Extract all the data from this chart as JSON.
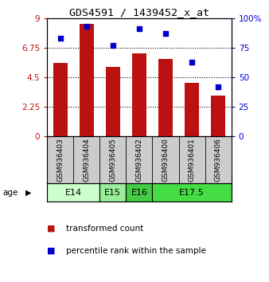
{
  "title": "GDS4591 / 1439452_x_at",
  "samples": [
    "GSM936403",
    "GSM936404",
    "GSM936405",
    "GSM936402",
    "GSM936400",
    "GSM936401",
    "GSM936406"
  ],
  "bar_values": [
    5.6,
    8.6,
    5.3,
    6.3,
    5.9,
    4.1,
    3.1
  ],
  "scatter_values": [
    83,
    93,
    77,
    91,
    87,
    63,
    42
  ],
  "bar_color": "#bb1111",
  "scatter_color": "#0000cc",
  "ylim_left": [
    0,
    9
  ],
  "ylim_right": [
    0,
    100
  ],
  "yticks_left": [
    0,
    2.25,
    4.5,
    6.75,
    9
  ],
  "ytick_labels_left": [
    "0",
    "2.25",
    "4.5",
    "6.75",
    "9"
  ],
  "yticks_right": [
    0,
    25,
    50,
    75,
    100
  ],
  "ytick_labels_right": [
    "0",
    "25",
    "50",
    "75",
    "100%"
  ],
  "hgrid_values": [
    2.25,
    4.5,
    6.75
  ],
  "age_groups": [
    {
      "label": "E14",
      "span": [
        0,
        1
      ],
      "color": "#ccffcc"
    },
    {
      "label": "E15",
      "span": [
        2,
        2
      ],
      "color": "#99ee99"
    },
    {
      "label": "E16",
      "span": [
        3,
        3
      ],
      "color": "#44cc44"
    },
    {
      "label": "E17.5",
      "span": [
        4,
        6
      ],
      "color": "#44dd44"
    }
  ],
  "legend_bar_label": "transformed count",
  "legend_scatter_label": "percentile rank within the sample",
  "background_color": "#ffffff",
  "sample_bg_color": "#cccccc",
  "age_label": "age"
}
